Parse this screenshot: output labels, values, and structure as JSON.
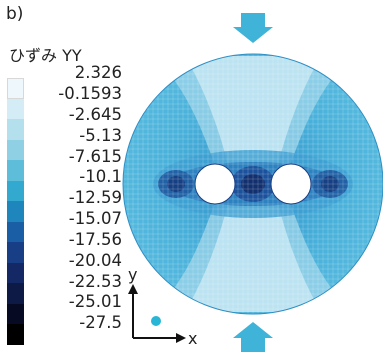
{
  "panel_label": "b)",
  "legend": {
    "title": "ひずみ YY",
    "labels": [
      "2.326",
      "-0.1593",
      "-2.645",
      "-5.13",
      "-7.615",
      "-10.1",
      "-12.59",
      "-15.07",
      "-17.56",
      "-20.04",
      "-22.53",
      "-25.01",
      "-27.5"
    ],
    "colors": [
      "#eef7fb",
      "#d4ecf5",
      "#b4e0ee",
      "#8fd0e4",
      "#5ebdd8",
      "#34a9cf",
      "#1f86bd",
      "#1a5ea5",
      "#183f86",
      "#142866",
      "#0c1a45",
      "#060a22",
      "#000000"
    ]
  },
  "axes": {
    "x_label": "x",
    "y_label": "y"
  },
  "colors": {
    "axis": "#111111",
    "marker": "#29b6d6",
    "arrow": "#3fb3d8",
    "specimen_base": "#4ab4dc",
    "hole_zone": "#1b4f9a",
    "mesh_line": "#ffffff"
  }
}
